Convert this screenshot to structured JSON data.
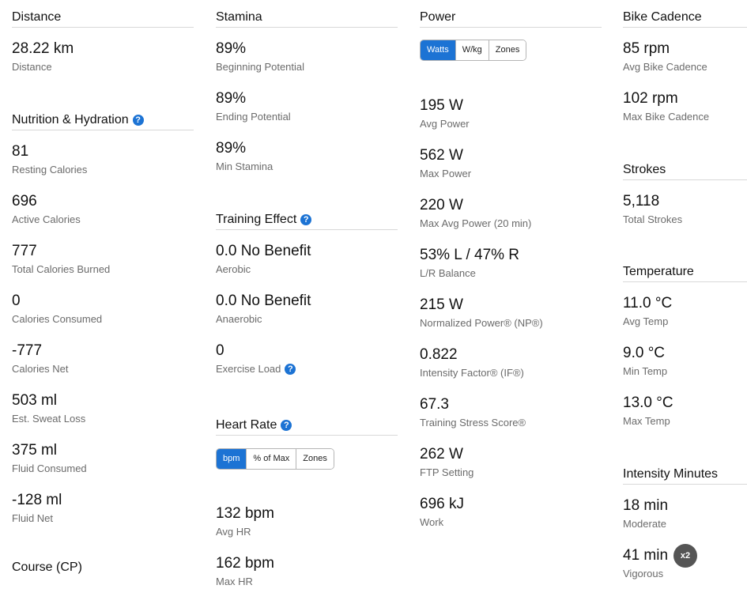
{
  "col1": {
    "distance": {
      "title": "Distance",
      "value": "28.22 km",
      "label": "Distance"
    },
    "nutrition": {
      "title": "Nutrition & Hydration",
      "help": "?",
      "stats": [
        {
          "value": "81",
          "label": "Resting Calories"
        },
        {
          "value": "696",
          "label": "Active Calories"
        },
        {
          "value": "777",
          "label": "Total Calories Burned"
        },
        {
          "value": "0",
          "label": "Calories Consumed"
        },
        {
          "value": "-777",
          "label": "Calories Net"
        },
        {
          "value": "503 ml",
          "label": "Est. Sweat Loss"
        },
        {
          "value": "375 ml",
          "label": "Fluid Consumed"
        },
        {
          "value": "-128 ml",
          "label": "Fluid Net"
        }
      ]
    },
    "next_title_partial": "Course (CP)"
  },
  "col2": {
    "stamina": {
      "title": "Stamina",
      "stats": [
        {
          "value": "89%",
          "label": "Beginning Potential"
        },
        {
          "value": "89%",
          "label": "Ending Potential"
        },
        {
          "value": "89%",
          "label": "Min Stamina"
        }
      ]
    },
    "training": {
      "title": "Training Effect",
      "help": "?",
      "stats": [
        {
          "value": "0.0 No Benefit",
          "label": "Aerobic"
        },
        {
          "value": "0.0 No Benefit",
          "label": "Anaerobic"
        },
        {
          "value": "0",
          "label": "Exercise Load",
          "help": "?"
        }
      ]
    },
    "heart": {
      "title": "Heart Rate",
      "help": "?",
      "toggle": [
        "bpm",
        "% of Max",
        "Zones"
      ],
      "stats": [
        {
          "value": "132 bpm",
          "label": "Avg HR"
        },
        {
          "value": "162 bpm",
          "label": "Max HR"
        }
      ]
    }
  },
  "col3": {
    "power": {
      "title": "Power",
      "toggle": [
        "Watts",
        "W/kg",
        "Zones"
      ],
      "stats": [
        {
          "value": "195 W",
          "label": "Avg Power"
        },
        {
          "value": "562 W",
          "label": "Max Power"
        },
        {
          "value": "220 W",
          "label": "Max Avg Power (20 min)"
        },
        {
          "value": "53% L / 47% R",
          "label": "L/R Balance"
        },
        {
          "value": "215 W",
          "label": "Normalized Power® (NP®)"
        },
        {
          "value": "0.822",
          "label": "Intensity Factor® (IF®)"
        },
        {
          "value": "67.3",
          "label": "Training Stress Score®"
        },
        {
          "value": "262 W",
          "label": "FTP Setting"
        },
        {
          "value": "696 kJ",
          "label": "Work"
        }
      ]
    }
  },
  "col4": {
    "cadence": {
      "title": "Bike Cadence",
      "stats": [
        {
          "value": "85 rpm",
          "label": "Avg Bike Cadence"
        },
        {
          "value": "102 rpm",
          "label": "Max Bike Cadence"
        }
      ]
    },
    "strokes": {
      "title": "Strokes",
      "stats": [
        {
          "value": "5,118",
          "label": "Total Strokes"
        }
      ]
    },
    "temperature": {
      "title": "Temperature",
      "stats": [
        {
          "value": "11.0 °C",
          "label": "Avg Temp"
        },
        {
          "value": "9.0 °C",
          "label": "Min Temp"
        },
        {
          "value": "13.0 °C",
          "label": "Max Temp"
        }
      ]
    },
    "intensity": {
      "title": "Intensity Minutes",
      "stats": [
        {
          "value": "18 min",
          "label": "Moderate"
        },
        {
          "value": "41 min",
          "label": "Vigorous",
          "badge": "x2"
        }
      ]
    }
  },
  "colors": {
    "accent": "#1c73d4",
    "badge": "#555555"
  }
}
